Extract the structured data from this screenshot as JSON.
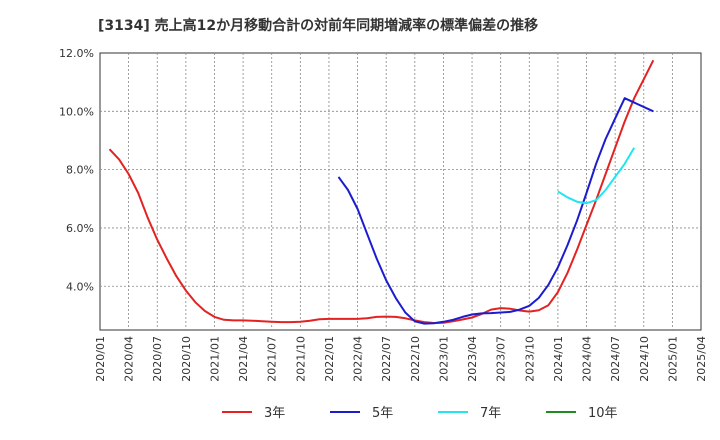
{
  "chart_data": {
    "type": "line",
    "title": "[3134]  売上高12か月移動合計の対前年同期増減率の標準偏差の推移",
    "xlabel": "",
    "ylabel": "",
    "ylim": [
      2.5,
      12.0
    ],
    "yticks": [
      4.0,
      6.0,
      8.0,
      10.0,
      12.0
    ],
    "ytick_labels": [
      "4.0%",
      "6.0%",
      "8.0%",
      "10.0%",
      "12.0%"
    ],
    "xlim": [
      "2020-01",
      "2025-04"
    ],
    "xtick_labels": [
      "2020/01",
      "2020/04",
      "2020/07",
      "2020/10",
      "2021/01",
      "2021/04",
      "2021/07",
      "2021/10",
      "2022/01",
      "2022/04",
      "2022/07",
      "2022/10",
      "2023/01",
      "2023/04",
      "2023/07",
      "2023/10",
      "2024/01",
      "2024/04",
      "2024/07",
      "2024/10",
      "2025/01",
      "2025/04"
    ],
    "grid": true,
    "legend_position": "bottom",
    "series": [
      {
        "name": "3年",
        "color": "#e32222",
        "points": [
          [
            "2020-02",
            8.7
          ],
          [
            "2020-03",
            8.35
          ],
          [
            "2020-04",
            7.85
          ],
          [
            "2020-05",
            7.2
          ],
          [
            "2020-06",
            6.35
          ],
          [
            "2020-07",
            5.6
          ],
          [
            "2020-08",
            4.95
          ],
          [
            "2020-09",
            4.35
          ],
          [
            "2020-10",
            3.85
          ],
          [
            "2020-11",
            3.45
          ],
          [
            "2020-12",
            3.15
          ],
          [
            "2021-01",
            2.95
          ],
          [
            "2021-02",
            2.85
          ],
          [
            "2021-03",
            2.83
          ],
          [
            "2021-04",
            2.83
          ],
          [
            "2021-05",
            2.82
          ],
          [
            "2021-06",
            2.8
          ],
          [
            "2021-07",
            2.78
          ],
          [
            "2021-08",
            2.77
          ],
          [
            "2021-09",
            2.77
          ],
          [
            "2021-10",
            2.78
          ],
          [
            "2021-11",
            2.82
          ],
          [
            "2021-12",
            2.87
          ],
          [
            "2022-01",
            2.88
          ],
          [
            "2022-02",
            2.88
          ],
          [
            "2022-03",
            2.88
          ],
          [
            "2022-04",
            2.88
          ],
          [
            "2022-05",
            2.9
          ],
          [
            "2022-06",
            2.95
          ],
          [
            "2022-07",
            2.96
          ],
          [
            "2022-08",
            2.95
          ],
          [
            "2022-09",
            2.9
          ],
          [
            "2022-10",
            2.83
          ],
          [
            "2022-11",
            2.77
          ],
          [
            "2022-12",
            2.74
          ],
          [
            "2023-01",
            2.75
          ],
          [
            "2023-02",
            2.8
          ],
          [
            "2023-03",
            2.86
          ],
          [
            "2023-04",
            2.93
          ],
          [
            "2023-05",
            3.05
          ],
          [
            "2023-06",
            3.2
          ],
          [
            "2023-07",
            3.25
          ],
          [
            "2023-08",
            3.23
          ],
          [
            "2023-09",
            3.17
          ],
          [
            "2023-10",
            3.13
          ],
          [
            "2023-11",
            3.18
          ],
          [
            "2023-12",
            3.35
          ],
          [
            "2024-01",
            3.8
          ],
          [
            "2024-02",
            4.45
          ],
          [
            "2024-03",
            5.25
          ],
          [
            "2024-04",
            6.1
          ],
          [
            "2024-05",
            6.95
          ],
          [
            "2024-06",
            7.85
          ],
          [
            "2024-07",
            8.75
          ],
          [
            "2024-08",
            9.65
          ],
          [
            "2024-09",
            10.45
          ],
          [
            "2024-10",
            11.1
          ],
          [
            "2024-11",
            11.75
          ]
        ]
      },
      {
        "name": "5年",
        "color": "#1c1ccf",
        "points": [
          [
            "2022-02",
            7.75
          ],
          [
            "2022-03",
            7.3
          ],
          [
            "2022-04",
            6.65
          ],
          [
            "2022-05",
            5.8
          ],
          [
            "2022-06",
            4.95
          ],
          [
            "2022-07",
            4.2
          ],
          [
            "2022-08",
            3.6
          ],
          [
            "2022-09",
            3.1
          ],
          [
            "2022-10",
            2.8
          ],
          [
            "2022-11",
            2.72
          ],
          [
            "2022-12",
            2.73
          ],
          [
            "2023-01",
            2.78
          ],
          [
            "2023-02",
            2.85
          ],
          [
            "2023-03",
            2.95
          ],
          [
            "2023-04",
            3.03
          ],
          [
            "2023-05",
            3.07
          ],
          [
            "2023-06",
            3.08
          ],
          [
            "2023-07",
            3.1
          ],
          [
            "2023-08",
            3.12
          ],
          [
            "2023-09",
            3.2
          ],
          [
            "2023-10",
            3.33
          ],
          [
            "2023-11",
            3.6
          ],
          [
            "2023-12",
            4.05
          ],
          [
            "2024-01",
            4.65
          ],
          [
            "2024-02",
            5.4
          ],
          [
            "2024-03",
            6.25
          ],
          [
            "2024-04",
            7.2
          ],
          [
            "2024-05",
            8.2
          ],
          [
            "2024-06",
            9.05
          ],
          [
            "2024-07",
            9.75
          ],
          [
            "2024-08",
            10.45
          ],
          [
            "2024-11",
            10.0
          ]
        ]
      },
      {
        "name": "7年",
        "color": "#22e5f0",
        "points": [
          [
            "2024-01",
            7.25
          ],
          [
            "2024-02",
            7.05
          ],
          [
            "2024-03",
            6.9
          ],
          [
            "2024-04",
            6.85
          ],
          [
            "2024-05",
            6.95
          ],
          [
            "2024-06",
            7.3
          ],
          [
            "2024-07",
            7.75
          ],
          [
            "2024-08",
            8.2
          ],
          [
            "2024-09",
            8.75
          ]
        ]
      },
      {
        "name": "10年",
        "color": "#1f8a1f",
        "points": []
      }
    ]
  }
}
